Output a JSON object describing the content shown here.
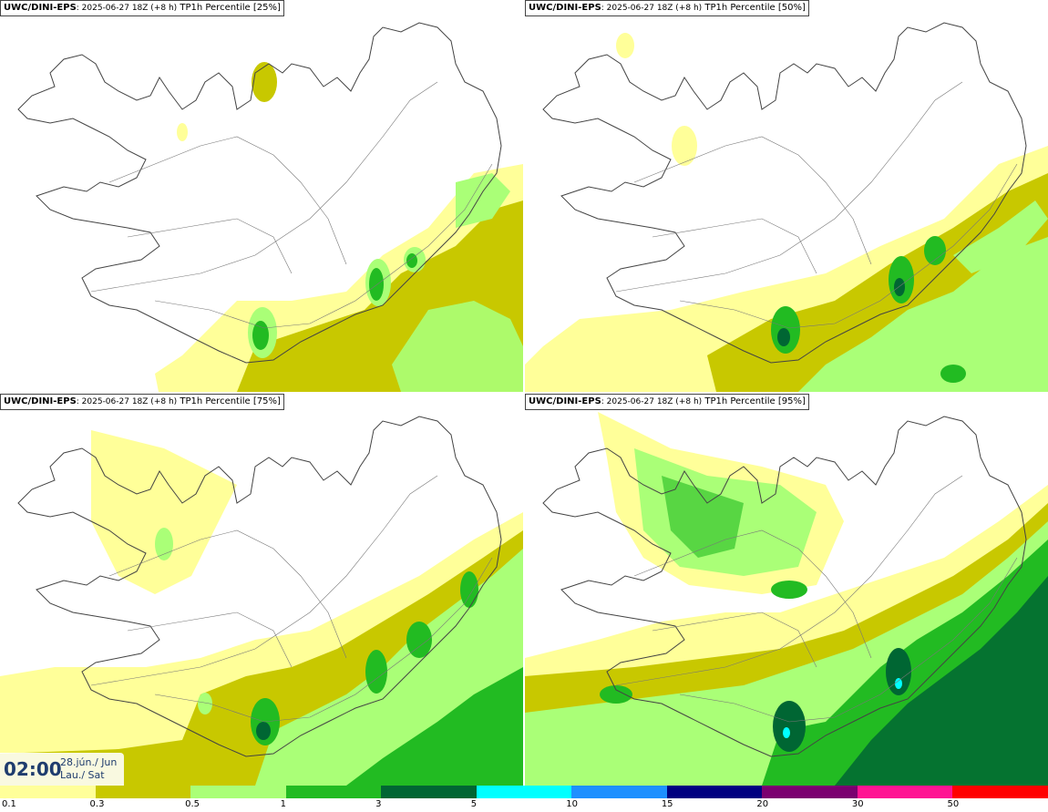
{
  "panels": [
    {
      "source": "UWC/DINI-EPS",
      "run": ": 2025-06-27 18Z (+8 h)",
      "label": " TP1h Percentile [25%]"
    },
    {
      "source": "UWC/DINI-EPS",
      "run": ": 2025-06-27 18Z (+8 h)",
      "label": " TP1h Percentile [50%]"
    },
    {
      "source": "UWC/DINI-EPS",
      "run": ": 2025-06-27 18Z (+8 h)",
      "label": " TP1h Percentile [75%]"
    },
    {
      "source": "UWC/DINI-EPS",
      "run": ": 2025-06-27 18Z (+8 h)",
      "label": " TP1h Percentile [95%]"
    }
  ],
  "time": {
    "clock": "02:00",
    "date_line1": "28.jún./ Jun",
    "date_line2": "Lau./ Sat"
  },
  "legend": {
    "ticks": [
      "0.1",
      "0.3",
      "0.5",
      "1",
      "3",
      "5",
      "10",
      "15",
      "20",
      "30",
      "50"
    ],
    "colors": [
      "#ffff99",
      "#c8c800",
      "#aaff77",
      "#22bb22",
      "#006633",
      "#00ffff",
      "#1e90ff",
      "#000080",
      "#7b0070",
      "#ff1493",
      "#ff0000"
    ]
  },
  "colors": {
    "level_0_1": "#ffff99",
    "level_0_3": "#c8c800",
    "level_0_5": "#aaff77",
    "level_1": "#22bb22",
    "level_3": "#006633",
    "level_5": "#00ffff",
    "coastline": "#444444"
  }
}
